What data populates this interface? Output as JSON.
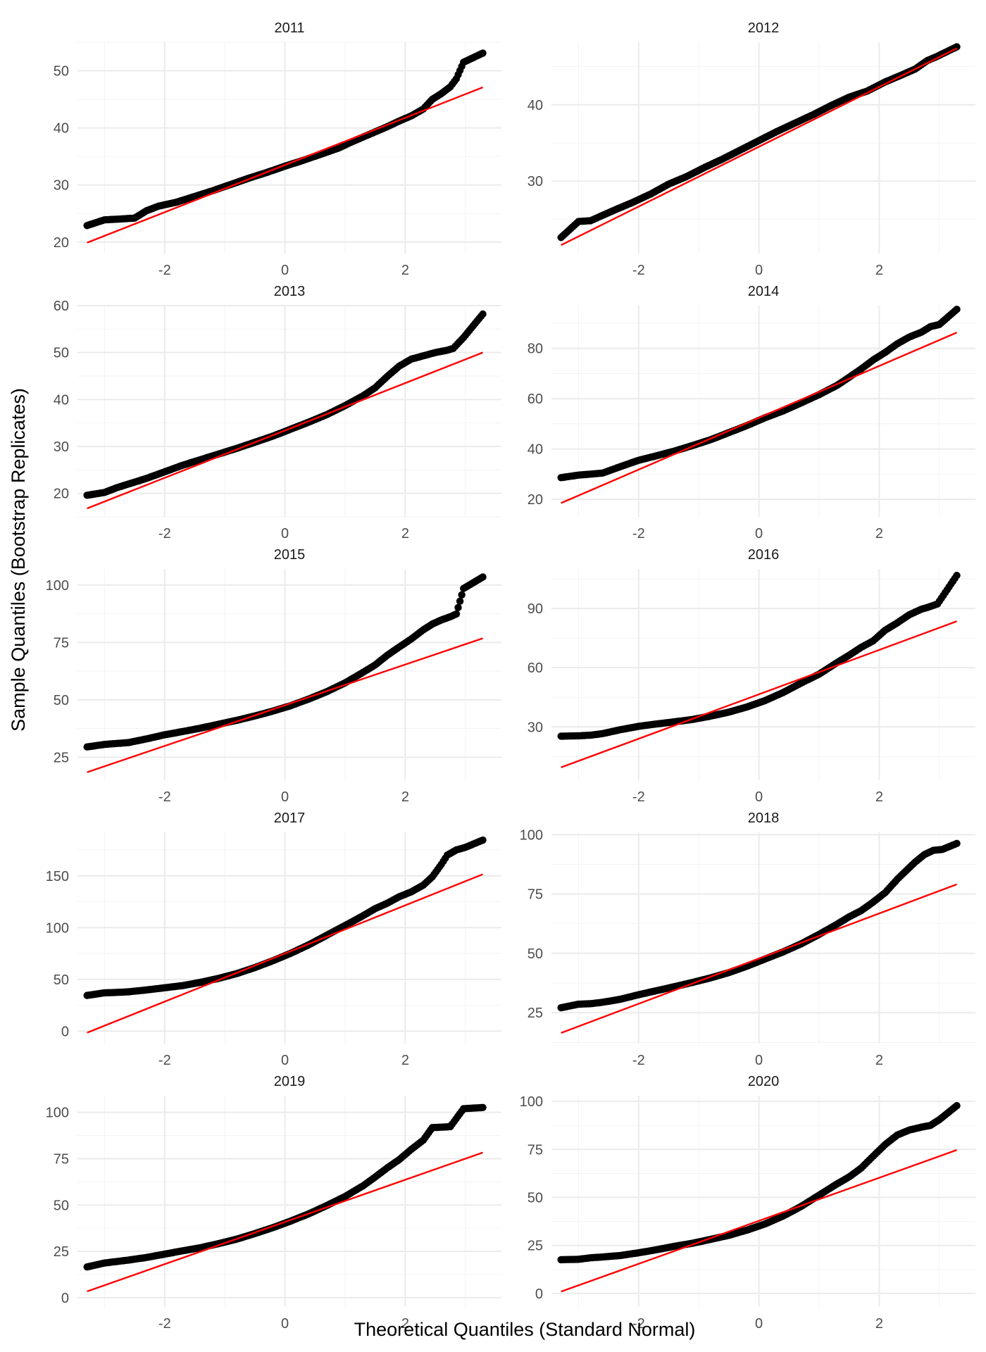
{
  "figure": {
    "xlabel": "Theoretical Quantiles (Standard Normal)",
    "ylabel": "Sample Quantiles (Bootstrap Replicates)",
    "point_color": "#000000",
    "line_color": "#ff0000"
  },
  "chart_data": [
    {
      "type": "scatter",
      "title": "2011",
      "x_ticks": [
        -2,
        0,
        2
      ],
      "y_ticks": [
        20,
        30,
        40,
        50
      ],
      "xlim": [
        -3.45,
        3.6
      ],
      "ylim": [
        18,
        55
      ],
      "line": {
        "x": [
          -3.29,
          3.29
        ],
        "y": [
          19.9,
          47.1
        ]
      },
      "points": [
        [
          -3.29,
          22.9
        ],
        [
          -3.0,
          23.9
        ],
        [
          -2.8,
          24.0
        ],
        [
          -2.65,
          24.1
        ],
        [
          -2.5,
          24.2
        ],
        [
          -2.3,
          25.5
        ],
        [
          -2.1,
          26.3
        ],
        [
          -1.8,
          27.0
        ],
        [
          -1.5,
          28.0
        ],
        [
          -1.2,
          29.0
        ],
        [
          -0.9,
          30.1
        ],
        [
          -0.6,
          31.2
        ],
        [
          -0.3,
          32.2
        ],
        [
          0.0,
          33.3
        ],
        [
          0.3,
          34.3
        ],
        [
          0.6,
          35.4
        ],
        [
          0.9,
          36.5
        ],
        [
          1.1,
          37.5
        ],
        [
          1.3,
          38.4
        ],
        [
          1.5,
          39.3
        ],
        [
          1.7,
          40.2
        ],
        [
          1.9,
          41.2
        ],
        [
          2.1,
          42.1
        ],
        [
          2.3,
          43.3
        ],
        [
          2.45,
          45.0
        ],
        [
          2.6,
          46.0
        ],
        [
          2.75,
          47.2
        ],
        [
          2.85,
          48.6
        ],
        [
          2.97,
          51.5
        ],
        [
          3.29,
          53.1
        ]
      ]
    },
    {
      "type": "scatter",
      "title": "2012",
      "x_ticks": [
        -2,
        0,
        2
      ],
      "y_ticks": [
        30,
        40
      ],
      "xlim": [
        -3.45,
        3.6
      ],
      "ylim": [
        20.5,
        48.2
      ],
      "line": {
        "x": [
          -3.29,
          3.29
        ],
        "y": [
          21.6,
          47.4
        ]
      },
      "points": [
        [
          -3.29,
          22.6
        ],
        [
          -3.0,
          24.7
        ],
        [
          -2.8,
          24.8
        ],
        [
          -2.6,
          25.5
        ],
        [
          -2.4,
          26.2
        ],
        [
          -2.1,
          27.2
        ],
        [
          -1.8,
          28.3
        ],
        [
          -1.5,
          29.6
        ],
        [
          -1.2,
          30.6
        ],
        [
          -0.9,
          31.8
        ],
        [
          -0.6,
          32.9
        ],
        [
          -0.3,
          34.1
        ],
        [
          0.0,
          35.3
        ],
        [
          0.3,
          36.5
        ],
        [
          0.6,
          37.6
        ],
        [
          0.9,
          38.7
        ],
        [
          1.2,
          39.9
        ],
        [
          1.5,
          41.0
        ],
        [
          1.8,
          41.8
        ],
        [
          2.1,
          43.0
        ],
        [
          2.4,
          44.0
        ],
        [
          2.6,
          44.7
        ],
        [
          2.8,
          45.8
        ],
        [
          2.95,
          46.3
        ],
        [
          3.29,
          47.6
        ]
      ]
    },
    {
      "type": "scatter",
      "title": "2013",
      "x_ticks": [
        -2,
        0,
        2
      ],
      "y_ticks": [
        20,
        30,
        40,
        50,
        60
      ],
      "xlim": [
        -3.45,
        3.6
      ],
      "ylim": [
        15,
        60
      ],
      "line": {
        "x": [
          -3.29,
          3.29
        ],
        "y": [
          16.8,
          50.0
        ]
      },
      "points": [
        [
          -3.29,
          19.6
        ],
        [
          -3.0,
          20.2
        ],
        [
          -2.8,
          21.2
        ],
        [
          -2.6,
          22.0
        ],
        [
          -2.3,
          23.2
        ],
        [
          -2.0,
          24.6
        ],
        [
          -1.7,
          26.0
        ],
        [
          -1.4,
          27.2
        ],
        [
          -1.1,
          28.4
        ],
        [
          -0.8,
          29.6
        ],
        [
          -0.5,
          30.9
        ],
        [
          -0.2,
          32.2
        ],
        [
          0.1,
          33.7
        ],
        [
          0.4,
          35.2
        ],
        [
          0.7,
          36.8
        ],
        [
          1.0,
          38.7
        ],
        [
          1.3,
          40.8
        ],
        [
          1.5,
          42.5
        ],
        [
          1.7,
          44.9
        ],
        [
          1.9,
          47.1
        ],
        [
          2.1,
          48.6
        ],
        [
          2.3,
          49.3
        ],
        [
          2.5,
          50.0
        ],
        [
          2.7,
          50.5
        ],
        [
          2.8,
          50.9
        ],
        [
          2.97,
          53.2
        ],
        [
          3.29,
          58.2
        ]
      ]
    },
    {
      "type": "scatter",
      "title": "2014",
      "x_ticks": [
        -2,
        0,
        2
      ],
      "y_ticks": [
        20,
        40,
        60,
        80
      ],
      "xlim": [
        -3.45,
        3.6
      ],
      "ylim": [
        13,
        97
      ],
      "line": {
        "x": [
          -3.29,
          3.29
        ],
        "y": [
          18.5,
          86.3
        ]
      },
      "points": [
        [
          -3.29,
          28.6
        ],
        [
          -3.0,
          29.6
        ],
        [
          -2.8,
          30.0
        ],
        [
          -2.6,
          30.4
        ],
        [
          -2.3,
          33.0
        ],
        [
          -2.0,
          35.5
        ],
        [
          -1.7,
          37.3
        ],
        [
          -1.4,
          39.2
        ],
        [
          -1.1,
          41.4
        ],
        [
          -0.8,
          43.7
        ],
        [
          -0.5,
          46.5
        ],
        [
          -0.2,
          49.3
        ],
        [
          0.1,
          52.4
        ],
        [
          0.4,
          55.1
        ],
        [
          0.7,
          58.3
        ],
        [
          1.0,
          61.6
        ],
        [
          1.3,
          65.3
        ],
        [
          1.5,
          68.5
        ],
        [
          1.7,
          71.8
        ],
        [
          1.9,
          75.4
        ],
        [
          2.1,
          78.4
        ],
        [
          2.3,
          81.8
        ],
        [
          2.5,
          84.5
        ],
        [
          2.7,
          86.4
        ],
        [
          2.85,
          88.6
        ],
        [
          3.0,
          89.5
        ],
        [
          3.29,
          95.5
        ]
      ]
    },
    {
      "type": "scatter",
      "title": "2015",
      "x_ticks": [
        -2,
        0,
        2
      ],
      "y_ticks": [
        25,
        50,
        75,
        100
      ],
      "xlim": [
        -3.45,
        3.6
      ],
      "ylim": [
        15,
        107
      ],
      "line": {
        "x": [
          -3.29,
          3.29
        ],
        "y": [
          18.5,
          76.8
        ]
      },
      "points": [
        [
          -3.29,
          29.5
        ],
        [
          -3.0,
          30.6
        ],
        [
          -2.8,
          31.0
        ],
        [
          -2.6,
          31.4
        ],
        [
          -2.3,
          33.0
        ],
        [
          -2.0,
          34.8
        ],
        [
          -1.7,
          36.2
        ],
        [
          -1.4,
          37.7
        ],
        [
          -1.1,
          39.4
        ],
        [
          -0.8,
          41.1
        ],
        [
          -0.5,
          43.0
        ],
        [
          -0.2,
          45.1
        ],
        [
          0.1,
          47.5
        ],
        [
          0.4,
          50.4
        ],
        [
          0.7,
          53.6
        ],
        [
          1.0,
          57.4
        ],
        [
          1.3,
          62.0
        ],
        [
          1.5,
          65.2
        ],
        [
          1.7,
          69.4
        ],
        [
          1.9,
          73.0
        ],
        [
          2.1,
          76.5
        ],
        [
          2.3,
          80.5
        ],
        [
          2.45,
          83.0
        ],
        [
          2.6,
          84.8
        ],
        [
          2.75,
          86.2
        ],
        [
          2.85,
          87.4
        ],
        [
          2.97,
          98.5
        ],
        [
          3.29,
          103.5
        ]
      ]
    },
    {
      "type": "scatter",
      "title": "2016",
      "x_ticks": [
        -2,
        0,
        2
      ],
      "y_ticks": [
        30,
        60,
        90
      ],
      "xlim": [
        -3.45,
        3.6
      ],
      "ylim": [
        3,
        110
      ],
      "line": {
        "x": [
          -3.29,
          3.29
        ],
        "y": [
          9.5,
          83.5
        ]
      },
      "points": [
        [
          -3.29,
          25.3
        ],
        [
          -3.0,
          25.5
        ],
        [
          -2.8,
          25.8
        ],
        [
          -2.6,
          26.6
        ],
        [
          -2.3,
          28.6
        ],
        [
          -2.0,
          30.3
        ],
        [
          -1.7,
          31.5
        ],
        [
          -1.4,
          32.6
        ],
        [
          -1.1,
          33.8
        ],
        [
          -0.8,
          35.5
        ],
        [
          -0.5,
          37.5
        ],
        [
          -0.2,
          40.1
        ],
        [
          0.1,
          43.3
        ],
        [
          0.4,
          47.4
        ],
        [
          0.7,
          52.2
        ],
        [
          1.0,
          56.7
        ],
        [
          1.3,
          62.6
        ],
        [
          1.5,
          66.3
        ],
        [
          1.7,
          70.3
        ],
        [
          1.9,
          73.6
        ],
        [
          2.1,
          79.0
        ],
        [
          2.3,
          82.7
        ],
        [
          2.5,
          86.8
        ],
        [
          2.7,
          89.6
        ],
        [
          2.8,
          90.5
        ],
        [
          2.97,
          92.3
        ],
        [
          3.29,
          106.7
        ]
      ]
    },
    {
      "type": "scatter",
      "title": "2017",
      "x_ticks": [
        -2,
        0,
        2
      ],
      "y_ticks": [
        0,
        50,
        100,
        150
      ],
      "xlim": [
        -3.45,
        3.6
      ],
      "ylim": [
        -12,
        192
      ],
      "line": {
        "x": [
          -3.29,
          3.29
        ],
        "y": [
          -1.5,
          151.5
        ]
      },
      "points": [
        [
          -3.29,
          34.5
        ],
        [
          -3.0,
          37.0
        ],
        [
          -2.8,
          37.4
        ],
        [
          -2.6,
          38.0
        ],
        [
          -2.3,
          39.8
        ],
        [
          -2.0,
          41.9
        ],
        [
          -1.7,
          44.0
        ],
        [
          -1.4,
          47.2
        ],
        [
          -1.1,
          51.0
        ],
        [
          -0.8,
          55.6
        ],
        [
          -0.5,
          61.4
        ],
        [
          -0.2,
          68.0
        ],
        [
          0.1,
          75.3
        ],
        [
          0.4,
          83.5
        ],
        [
          0.7,
          92.8
        ],
        [
          1.0,
          102.0
        ],
        [
          1.3,
          111.5
        ],
        [
          1.5,
          118.3
        ],
        [
          1.7,
          123.5
        ],
        [
          1.9,
          129.8
        ],
        [
          2.1,
          134.5
        ],
        [
          2.3,
          141.0
        ],
        [
          2.45,
          149.0
        ],
        [
          2.6,
          161.0
        ],
        [
          2.7,
          170.0
        ],
        [
          2.85,
          175.0
        ],
        [
          3.0,
          177.5
        ],
        [
          3.29,
          184.5
        ]
      ]
    },
    {
      "type": "scatter",
      "title": "2018",
      "x_ticks": [
        -2,
        0,
        2
      ],
      "y_ticks": [
        25,
        50,
        75,
        100
      ],
      "xlim": [
        -3.45,
        3.6
      ],
      "ylim": [
        12,
        101
      ],
      "line": {
        "x": [
          -3.29,
          3.29
        ],
        "y": [
          16.5,
          79.1
        ]
      },
      "points": [
        [
          -3.29,
          27.1
        ],
        [
          -3.0,
          28.6
        ],
        [
          -2.8,
          28.8
        ],
        [
          -2.6,
          29.4
        ],
        [
          -2.3,
          30.7
        ],
        [
          -2.0,
          32.6
        ],
        [
          -1.7,
          34.3
        ],
        [
          -1.4,
          36.0
        ],
        [
          -1.1,
          37.8
        ],
        [
          -0.8,
          39.7
        ],
        [
          -0.5,
          41.9
        ],
        [
          -0.2,
          44.6
        ],
        [
          0.1,
          47.6
        ],
        [
          0.4,
          50.6
        ],
        [
          0.7,
          54.0
        ],
        [
          1.0,
          58.0
        ],
        [
          1.3,
          62.3
        ],
        [
          1.5,
          65.4
        ],
        [
          1.7,
          68.0
        ],
        [
          1.9,
          71.6
        ],
        [
          2.1,
          75.6
        ],
        [
          2.3,
          81.2
        ],
        [
          2.45,
          84.9
        ],
        [
          2.6,
          88.5
        ],
        [
          2.75,
          91.6
        ],
        [
          2.9,
          93.4
        ],
        [
          3.05,
          93.8
        ],
        [
          3.29,
          96.3
        ]
      ]
    },
    {
      "type": "scatter",
      "title": "2019",
      "x_ticks": [
        -2,
        0,
        2
      ],
      "y_ticks": [
        0,
        25,
        50,
        75,
        100
      ],
      "xlim": [
        -3.45,
        3.6
      ],
      "ylim": [
        -5,
        109
      ],
      "line": {
        "x": [
          -3.29,
          3.29
        ],
        "y": [
          3.4,
          78.3
        ]
      },
      "points": [
        [
          -3.29,
          16.6
        ],
        [
          -3.0,
          18.7
        ],
        [
          -2.8,
          19.5
        ],
        [
          -2.6,
          20.3
        ],
        [
          -2.3,
          21.7
        ],
        [
          -2.0,
          23.5
        ],
        [
          -1.7,
          25.3
        ],
        [
          -1.4,
          27.0
        ],
        [
          -1.1,
          29.2
        ],
        [
          -0.8,
          31.6
        ],
        [
          -0.5,
          34.6
        ],
        [
          -0.2,
          37.8
        ],
        [
          0.1,
          41.4
        ],
        [
          0.4,
          45.3
        ],
        [
          0.7,
          49.8
        ],
        [
          1.0,
          54.6
        ],
        [
          1.3,
          60.4
        ],
        [
          1.5,
          65.1
        ],
        [
          1.7,
          70.0
        ],
        [
          1.9,
          74.5
        ],
        [
          2.1,
          80.0
        ],
        [
          2.3,
          85.0
        ],
        [
          2.45,
          91.8
        ],
        [
          2.6,
          92.0
        ],
        [
          2.75,
          92.3
        ],
        [
          2.97,
          102.0
        ],
        [
          3.29,
          102.6
        ]
      ]
    },
    {
      "type": "scatter",
      "title": "2020",
      "x_ticks": [
        -2,
        0,
        2
      ],
      "y_ticks": [
        0,
        25,
        50,
        75,
        100
      ],
      "xlim": [
        -3.45,
        3.6
      ],
      "ylim": [
        -7,
        103
      ],
      "line": {
        "x": [
          -3.29,
          3.29
        ],
        "y": [
          1.0,
          74.7
        ]
      },
      "points": [
        [
          -3.29,
          17.6
        ],
        [
          -3.0,
          17.8
        ],
        [
          -2.8,
          18.6
        ],
        [
          -2.6,
          19.0
        ],
        [
          -2.3,
          19.8
        ],
        [
          -2.0,
          21.2
        ],
        [
          -1.7,
          22.8
        ],
        [
          -1.4,
          24.6
        ],
        [
          -1.1,
          26.2
        ],
        [
          -0.8,
          28.2
        ],
        [
          -0.5,
          30.3
        ],
        [
          -0.2,
          33.0
        ],
        [
          0.1,
          36.2
        ],
        [
          0.4,
          40.3
        ],
        [
          0.7,
          45.3
        ],
        [
          1.0,
          51.2
        ],
        [
          1.3,
          57.1
        ],
        [
          1.5,
          60.7
        ],
        [
          1.7,
          65.3
        ],
        [
          1.9,
          71.5
        ],
        [
          2.1,
          77.6
        ],
        [
          2.3,
          82.5
        ],
        [
          2.5,
          85.1
        ],
        [
          2.7,
          86.6
        ],
        [
          2.85,
          87.5
        ],
        [
          3.0,
          90.5
        ],
        [
          3.29,
          97.8
        ]
      ]
    }
  ]
}
